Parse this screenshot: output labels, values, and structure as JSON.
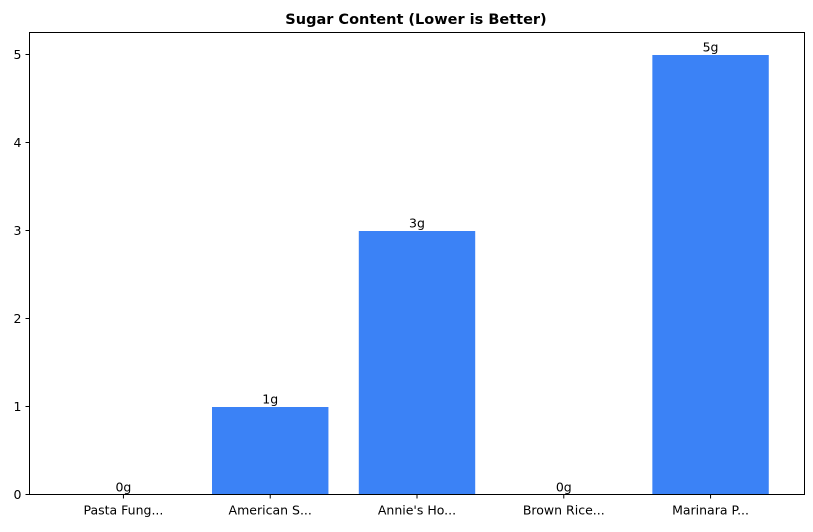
{
  "chart_data": {
    "type": "bar",
    "title": "Sugar Content (Lower is Better)",
    "xlabel": "",
    "ylabel": "",
    "categories": [
      "Pasta Fung...",
      "American S...",
      "Annie's Ho...",
      "Brown Rice...",
      "Marinara P..."
    ],
    "values": [
      0,
      1,
      3,
      0,
      5
    ],
    "data_labels": [
      "0g",
      "1g",
      "3g",
      "0g",
      "5g"
    ],
    "ylim": [
      0,
      5.25
    ],
    "yticks": [
      0,
      1,
      2,
      3,
      4,
      5
    ],
    "grid": false,
    "bar_color": "#3b82f6",
    "edge_color": "#ffffff"
  }
}
